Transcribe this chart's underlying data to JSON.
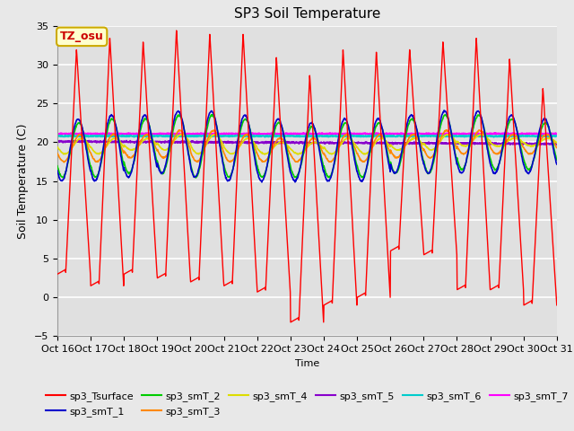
{
  "title": "SP3 Soil Temperature",
  "ylabel": "Soil Temperature (C)",
  "xlabel": "Time",
  "ylim": [
    -5,
    35
  ],
  "xlim": [
    0,
    15
  ],
  "x_tick_labels": [
    "Oct 16",
    "Oct 17",
    "Oct 18",
    "Oct 19",
    "Oct 20",
    "Oct 21",
    "Oct 22",
    "Oct 23",
    "Oct 24",
    "Oct 25",
    "Oct 26",
    "Oct 27",
    "Oct 28",
    "Oct 29",
    "Oct 30",
    "Oct 31"
  ],
  "annotation_text": "TZ_osu",
  "annotation_color": "#cc0000",
  "annotation_bg": "#ffffcc",
  "annotation_border": "#ccaa00",
  "series_colors": {
    "sp3_Tsurface": "#ff0000",
    "sp3_smT_1": "#0000cc",
    "sp3_smT_2": "#00cc00",
    "sp3_smT_3": "#ff8800",
    "sp3_smT_4": "#dddd00",
    "sp3_smT_5": "#8800cc",
    "sp3_smT_6": "#00cccc",
    "sp3_smT_7": "#ff00ff"
  },
  "background_color": "#e8e8e8",
  "plot_bg_color": "#e0e0e0",
  "grid_color": "#ffffff",
  "n_days": 15,
  "surface_peaks": [
    32,
    33.5,
    33,
    34.5,
    34,
    34,
    31,
    28.7,
    32,
    31.7,
    32,
    33,
    33.5,
    30.8,
    27
  ],
  "surface_troughs": [
    3,
    1.5,
    3,
    2.5,
    2,
    1.5,
    0.7,
    -3.2,
    -1,
    0,
    6,
    5.5,
    1,
    1,
    -1
  ],
  "smT1_peaks": [
    23,
    23.5,
    23.5,
    24,
    24,
    23.5,
    23,
    22.5,
    23,
    23,
    23.5,
    24,
    24,
    23.5,
    23
  ],
  "smT1_troughs": [
    15,
    15,
    15.5,
    16,
    15.5,
    15,
    15,
    15,
    15,
    15,
    16,
    16,
    16,
    16,
    16
  ],
  "smT2_peaks": [
    22.5,
    23,
    23,
    23.5,
    23.5,
    23,
    22.5,
    22,
    22.5,
    22.5,
    23,
    23.5,
    23.5,
    23,
    22.5
  ],
  "smT2_troughs": [
    15.5,
    15.5,
    16,
    16,
    15.5,
    15.5,
    15.5,
    15.5,
    15.5,
    15.5,
    16,
    16,
    16.5,
    16.5,
    16.5
  ],
  "smT3_peaks": [
    21,
    21,
    21,
    21.5,
    21.5,
    21,
    20.5,
    20.5,
    21,
    21,
    21,
    21.5,
    21.5,
    21,
    21
  ],
  "smT3_troughs": [
    17.5,
    17.5,
    18,
    18,
    17.5,
    17.5,
    17.5,
    17.5,
    17.5,
    17.5,
    18,
    18,
    18.5,
    18.5,
    18.5
  ],
  "smT4_peaks": [
    20.5,
    20.5,
    20.5,
    21,
    21,
    20.5,
    20,
    20,
    20.5,
    20.5,
    20.5,
    21,
    21,
    20.5,
    20.5
  ],
  "smT4_troughs": [
    18.5,
    18.5,
    19,
    19,
    18.5,
    18.5,
    18.5,
    18.5,
    18.5,
    18.5,
    19,
    19,
    19.5,
    19.5,
    19.5
  ],
  "smT5_mean": 20.1,
  "smT6_mean": 20.8,
  "smT7_mean": 21.1
}
